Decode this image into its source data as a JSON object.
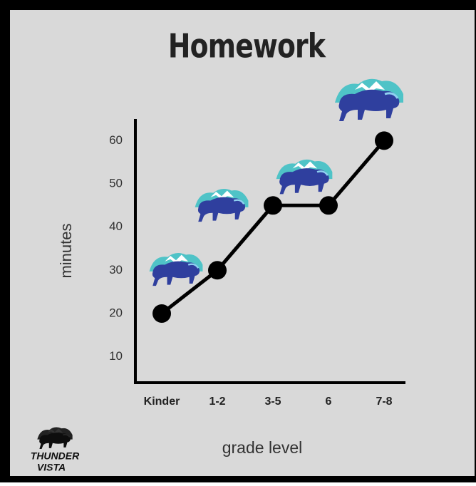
{
  "chart_data": {
    "type": "line",
    "title": "Homework",
    "x_label": "grade level",
    "y_label": "minutes",
    "categories": [
      "Kinder",
      "1-2",
      "3-5",
      "6",
      "7-8"
    ],
    "values": [
      20,
      30,
      45,
      45,
      60
    ],
    "color": "#000000",
    "ylim": [
      4,
      65
    ],
    "yticks": [
      10,
      20,
      30,
      40,
      50,
      60
    ],
    "grid": false
  },
  "logo": {
    "line1": "THUNDER",
    "line2": "VISTA"
  }
}
